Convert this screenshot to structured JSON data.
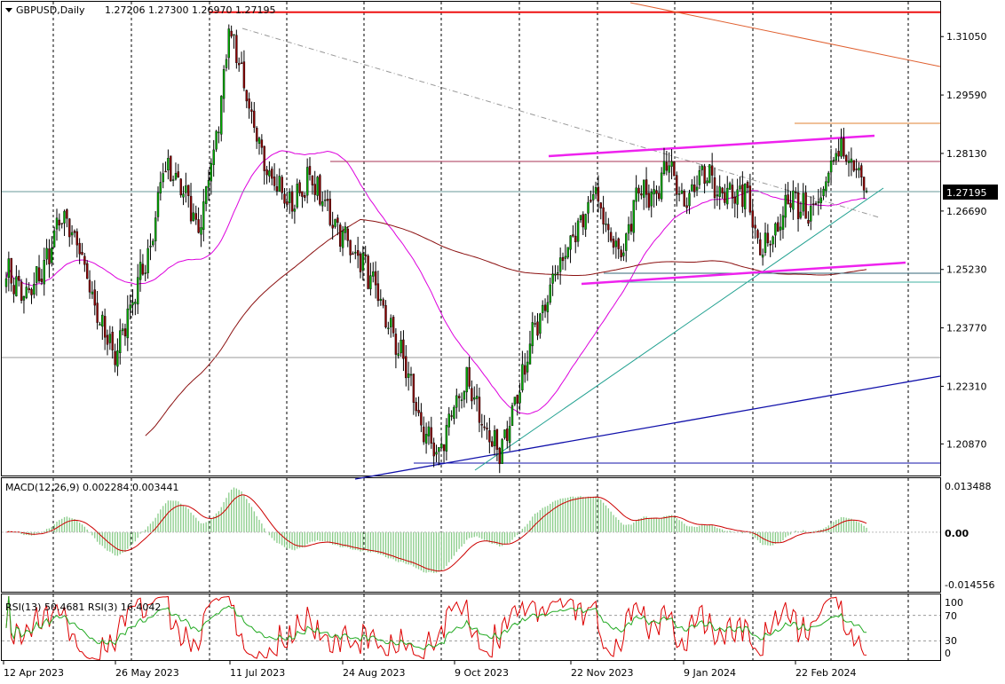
{
  "header": {
    "symbol": "GBPUSD,Daily",
    "ohlc": "1.27206 1.27300 1.26970 1.27195"
  },
  "macd": {
    "label": "MACD(12,26,9) 0.002284 0.003441"
  },
  "rsi": {
    "label": "RSI(13) 50.4681  RSI(3) 16.4042"
  },
  "colors": {
    "bull": "#00aa00",
    "bear": "#8b0000",
    "ma_fast": "#dd00dd",
    "ma_slow": "#8b1010",
    "support_line": "#1010aa",
    "trend_line": "#20a090",
    "resistance": "#ee1111",
    "channel": "#ee22ee",
    "macd_hist": "#88cc88",
    "macd_signal": "#cc0000",
    "rsi13": "#22aa22",
    "rsi3": "#dd0000",
    "current_price_bg": "#000000"
  },
  "chart_data": {
    "type": "candlestick",
    "symbol": "GBPUSD",
    "timeframe": "Daily",
    "x_ticks": [
      "12 Apr 2023",
      "26 May 2023",
      "11 Jul 2023",
      "24 Aug 2023",
      "9 Oct 2023",
      "22 Nov 2023",
      "9 Jan 2024",
      "22 Feb 2024"
    ],
    "y_ticks": [
      "1.31050",
      "1.29590",
      "1.28130",
      "1.26690",
      "1.25230",
      "1.23770",
      "1.22310",
      "1.20870"
    ],
    "ylim": [
      1.2008,
      1.3192
    ],
    "current_price": "1.27195",
    "anchors": [
      [
        0,
        1.252
      ],
      [
        8,
        1.245
      ],
      [
        15,
        1.253
      ],
      [
        22,
        1.266
      ],
      [
        30,
        1.255
      ],
      [
        38,
        1.237
      ],
      [
        43,
        1.231
      ],
      [
        50,
        1.245
      ],
      [
        57,
        1.258
      ],
      [
        62,
        1.278
      ],
      [
        70,
        1.272
      ],
      [
        76,
        1.262
      ],
      [
        83,
        1.285
      ],
      [
        88,
        1.3125
      ],
      [
        92,
        1.305
      ],
      [
        97,
        1.288
      ],
      [
        104,
        1.277
      ],
      [
        112,
        1.268
      ],
      [
        120,
        1.275
      ],
      [
        128,
        1.266
      ],
      [
        136,
        1.258
      ],
      [
        142,
        1.253
      ],
      [
        150,
        1.24
      ],
      [
        158,
        1.228
      ],
      [
        164,
        1.213
      ],
      [
        170,
        1.205
      ],
      [
        176,
        1.216
      ],
      [
        182,
        1.225
      ],
      [
        188,
        1.214
      ],
      [
        195,
        1.207
      ],
      [
        202,
        1.219
      ],
      [
        208,
        1.236
      ],
      [
        214,
        1.247
      ],
      [
        220,
        1.256
      ],
      [
        226,
        1.262
      ],
      [
        232,
        1.272
      ],
      [
        238,
        1.262
      ],
      [
        244,
        1.256
      ],
      [
        250,
        1.275
      ],
      [
        256,
        1.269
      ],
      [
        262,
        1.279
      ],
      [
        268,
        1.268
      ],
      [
        276,
        1.276
      ],
      [
        284,
        1.27
      ],
      [
        292,
        1.272
      ],
      [
        298,
        1.256
      ],
      [
        304,
        1.262
      ],
      [
        310,
        1.27
      ],
      [
        316,
        1.267
      ],
      [
        322,
        1.27
      ],
      [
        328,
        1.283
      ],
      [
        334,
        1.279
      ],
      [
        340,
        1.272
      ]
    ],
    "overlays": {
      "resistance_level": 1.3166,
      "lower_support_level": 1.2025,
      "sma_fast_name": "moving-average-fast",
      "sma_slow_name": "moving-average-slow"
    },
    "macd": {
      "ylim": [
        -0.016,
        0.0145
      ],
      "y_ticks": [
        "0.013488",
        "0.00",
        "-0.014556"
      ],
      "macd_value": 0.002284,
      "signal_value": 0.003441
    },
    "rsi": {
      "ylim": [
        0,
        100
      ],
      "y_ticks": [
        "100",
        "70",
        "30",
        "0"
      ],
      "levels": [
        70,
        30
      ],
      "rsi13_value": 50.4681,
      "rsi3_value": 16.4042
    }
  }
}
